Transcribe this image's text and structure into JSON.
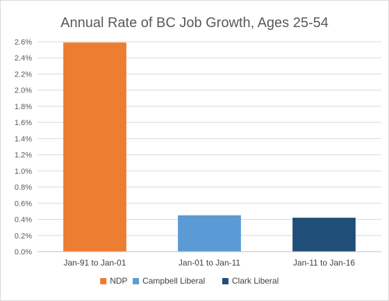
{
  "chart_data": {
    "type": "bar",
    "title": "Annual Rate of BC Job Growth, Ages 25-54",
    "xlabel": "",
    "ylabel": "",
    "categories": [
      "Jan-91 to Jan-01",
      "Jan-01 to Jan-11",
      "Jan-11 to Jan-16"
    ],
    "values": [
      2.59,
      0.45,
      0.42
    ],
    "value_unit": "%",
    "ylim": [
      0,
      2.6
    ],
    "yticks": [
      "0.0%",
      "0.2%",
      "0.4%",
      "0.6%",
      "0.8%",
      "1.0%",
      "1.2%",
      "1.4%",
      "1.6%",
      "1.8%",
      "2.0%",
      "2.2%",
      "2.4%",
      "2.6%"
    ],
    "grid": true,
    "legend_position": "bottom",
    "series_colors": [
      "#ED7D31",
      "#5B9BD5",
      "#1F4E79"
    ],
    "legend": [
      {
        "name": "NDP",
        "color": "#ED7D31"
      },
      {
        "name": "Campbell Liberal",
        "color": "#5B9BD5"
      },
      {
        "name": "Clark Liberal",
        "color": "#1F4E79"
      }
    ]
  }
}
